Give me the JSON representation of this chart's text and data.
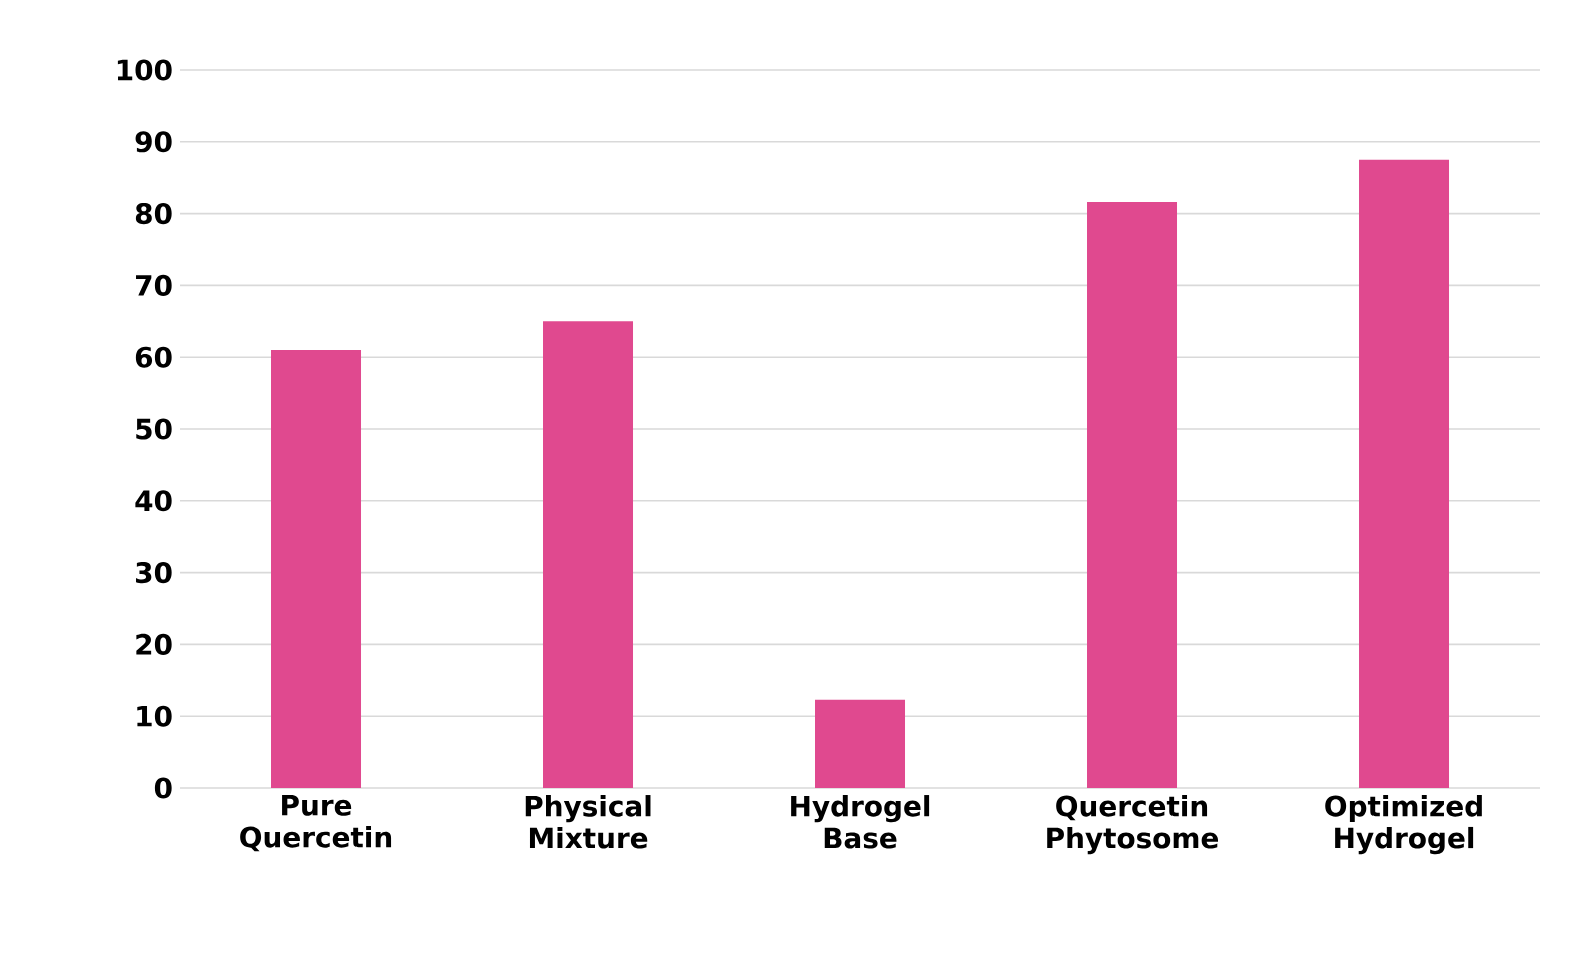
{
  "chart_data": {
    "type": "bar",
    "categories": [
      "Pure Quercetin",
      "Physical Mixture",
      "Hydrogel Base",
      "Quercetin Phytosome",
      "Optimized Hydrogel"
    ],
    "values": [
      61,
      65,
      12.3,
      81.6,
      87.5
    ],
    "color": "#e0498f",
    "ylim": [
      0,
      100
    ],
    "yticks": [
      0,
      10,
      20,
      30,
      40,
      50,
      60,
      70,
      80,
      90,
      100
    ],
    "grid": "y"
  }
}
